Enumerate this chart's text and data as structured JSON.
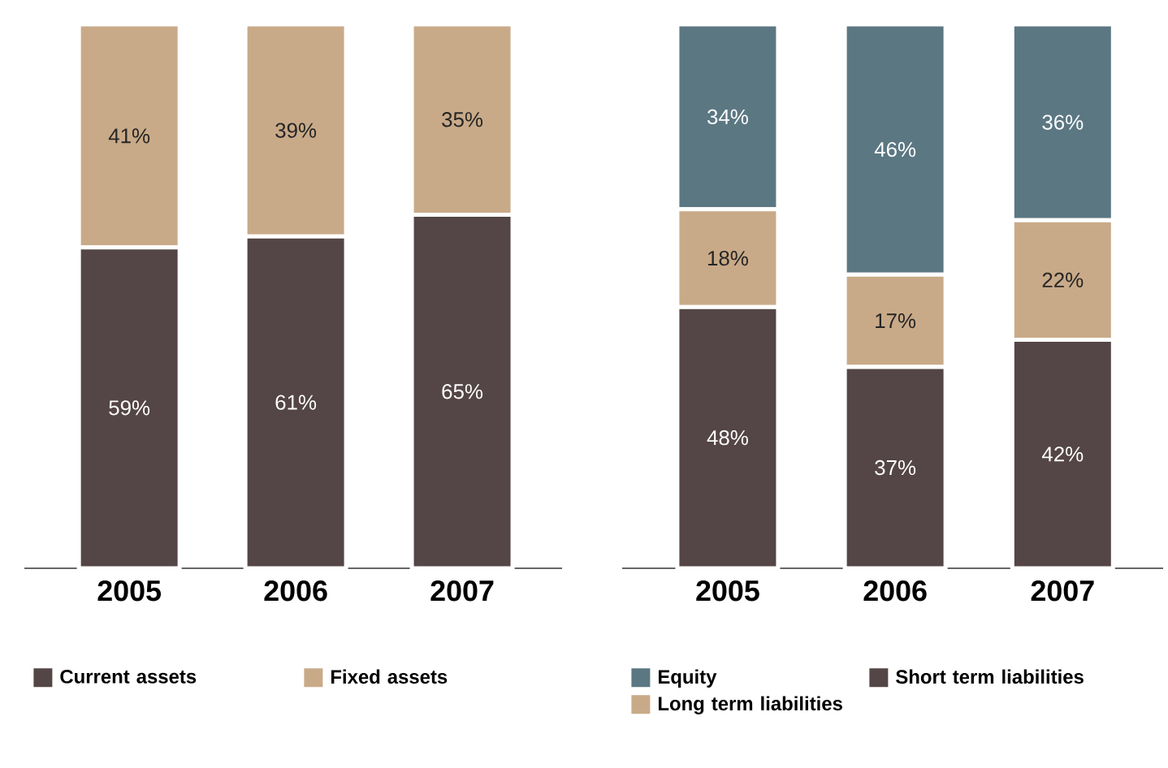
{
  "chart_data": [
    {
      "type": "bar",
      "stacked": true,
      "categories": [
        "2005",
        "2006",
        "2007"
      ],
      "tick_labels": "x",
      "legend": "bottom",
      "series": [
        {
          "name": "Current assets",
          "color": "#544546",
          "values": [
            59,
            61,
            65
          ],
          "value_labels": [
            "59%",
            "61%",
            "65%"
          ]
        },
        {
          "name": "Fixed assets",
          "color": "#c9aa88",
          "values": [
            41,
            39,
            35
          ],
          "value_labels": [
            "41%",
            "39%",
            "35%"
          ]
        }
      ]
    },
    {
      "type": "bar",
      "stacked": true,
      "categories": [
        "2005",
        "2006",
        "2007"
      ],
      "tick_labels": "x",
      "legend": "bottom",
      "series": [
        {
          "name": "Short term liabilities",
          "color": "#544546",
          "values": [
            48,
            37,
            42
          ],
          "value_labels": [
            "48%",
            "37%",
            "42%"
          ]
        },
        {
          "name": "Long term liabilities",
          "color": "#c9aa88",
          "values": [
            18,
            17,
            22
          ],
          "value_labels": [
            "18%",
            "17%",
            "22%"
          ]
        },
        {
          "name": "Equity",
          "color": "#5b7782",
          "values": [
            34,
            46,
            36
          ],
          "value_labels": [
            "34%",
            "46%",
            "36%"
          ]
        }
      ]
    }
  ]
}
